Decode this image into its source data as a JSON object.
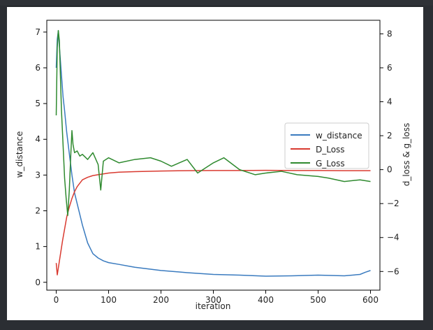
{
  "chart_data": {
    "type": "line",
    "xlabel": "iteration",
    "ylabel_left": "w_distance",
    "ylabel_right": "d_loss & g_loss",
    "xlim": [
      -18,
      618
    ],
    "ylim_left": [
      -0.22,
      7.33
    ],
    "ylim_right": [
      -7.1,
      8.8
    ],
    "xticks": [
      0,
      100,
      200,
      300,
      400,
      500,
      600
    ],
    "yticks_left": [
      0,
      1,
      2,
      3,
      4,
      5,
      6,
      7
    ],
    "yticks_right": [
      -6,
      -4,
      -2,
      0,
      2,
      4,
      6,
      8
    ],
    "grid": false,
    "legend_position": "center-right",
    "series": [
      {
        "name": "w_distance",
        "axis": "left",
        "color": "#3a7bbf",
        "x": [
          0,
          2,
          4,
          6,
          8,
          10,
          13,
          16,
          20,
          25,
          30,
          35,
          40,
          45,
          50,
          55,
          60,
          65,
          70,
          80,
          90,
          100,
          120,
          150,
          200,
          250,
          300,
          350,
          400,
          450,
          500,
          550,
          580,
          590,
          600
        ],
        "y": [
          6.0,
          6.8,
          7.03,
          6.6,
          6.2,
          5.8,
          5.2,
          4.8,
          4.2,
          3.6,
          3.0,
          2.5,
          2.2,
          1.9,
          1.6,
          1.35,
          1.1,
          0.95,
          0.8,
          0.68,
          0.6,
          0.55,
          0.5,
          0.42,
          0.33,
          0.27,
          0.22,
          0.2,
          0.17,
          0.18,
          0.2,
          0.18,
          0.22,
          0.28,
          0.33
        ]
      },
      {
        "name": "D_Loss",
        "axis": "right",
        "color": "#d93a30",
        "x": [
          0,
          2,
          4,
          8,
          12,
          16,
          20,
          25,
          30,
          35,
          40,
          45,
          50,
          60,
          70,
          80,
          90,
          100,
          120,
          150,
          200,
          250,
          300,
          350,
          400,
          450,
          500,
          550,
          600
        ],
        "y": [
          -5.5,
          -6.2,
          -5.8,
          -5.0,
          -4.2,
          -3.5,
          -2.8,
          -2.2,
          -1.7,
          -1.3,
          -1.0,
          -0.8,
          -0.6,
          -0.45,
          -0.35,
          -0.3,
          -0.25,
          -0.2,
          -0.15,
          -0.12,
          -0.08,
          -0.06,
          -0.05,
          -0.05,
          -0.04,
          -0.05,
          -0.05,
          -0.06,
          -0.06
        ]
      },
      {
        "name": "G_Loss",
        "axis": "right",
        "color": "#2f8a2f",
        "x": [
          0,
          2,
          4,
          6,
          8,
          10,
          13,
          16,
          19,
          22,
          25,
          28,
          30,
          32,
          35,
          40,
          45,
          50,
          60,
          70,
          80,
          85,
          90,
          100,
          120,
          150,
          180,
          200,
          220,
          250,
          270,
          300,
          320,
          350,
          380,
          400,
          430,
          460,
          500,
          520,
          550,
          580,
          600
        ],
        "y": [
          3.2,
          7.2,
          8.2,
          7.6,
          5.5,
          3.5,
          1.5,
          -0.5,
          -1.7,
          -2.7,
          -1.2,
          1.0,
          2.3,
          1.5,
          1.0,
          1.1,
          0.8,
          0.9,
          0.6,
          1.0,
          0.3,
          -1.2,
          0.5,
          0.7,
          0.4,
          0.6,
          0.7,
          0.5,
          0.2,
          0.6,
          -0.2,
          0.4,
          0.7,
          0.0,
          -0.3,
          -0.2,
          -0.1,
          -0.3,
          -0.4,
          -0.5,
          -0.7,
          -0.6,
          -0.7
        ]
      }
    ]
  }
}
